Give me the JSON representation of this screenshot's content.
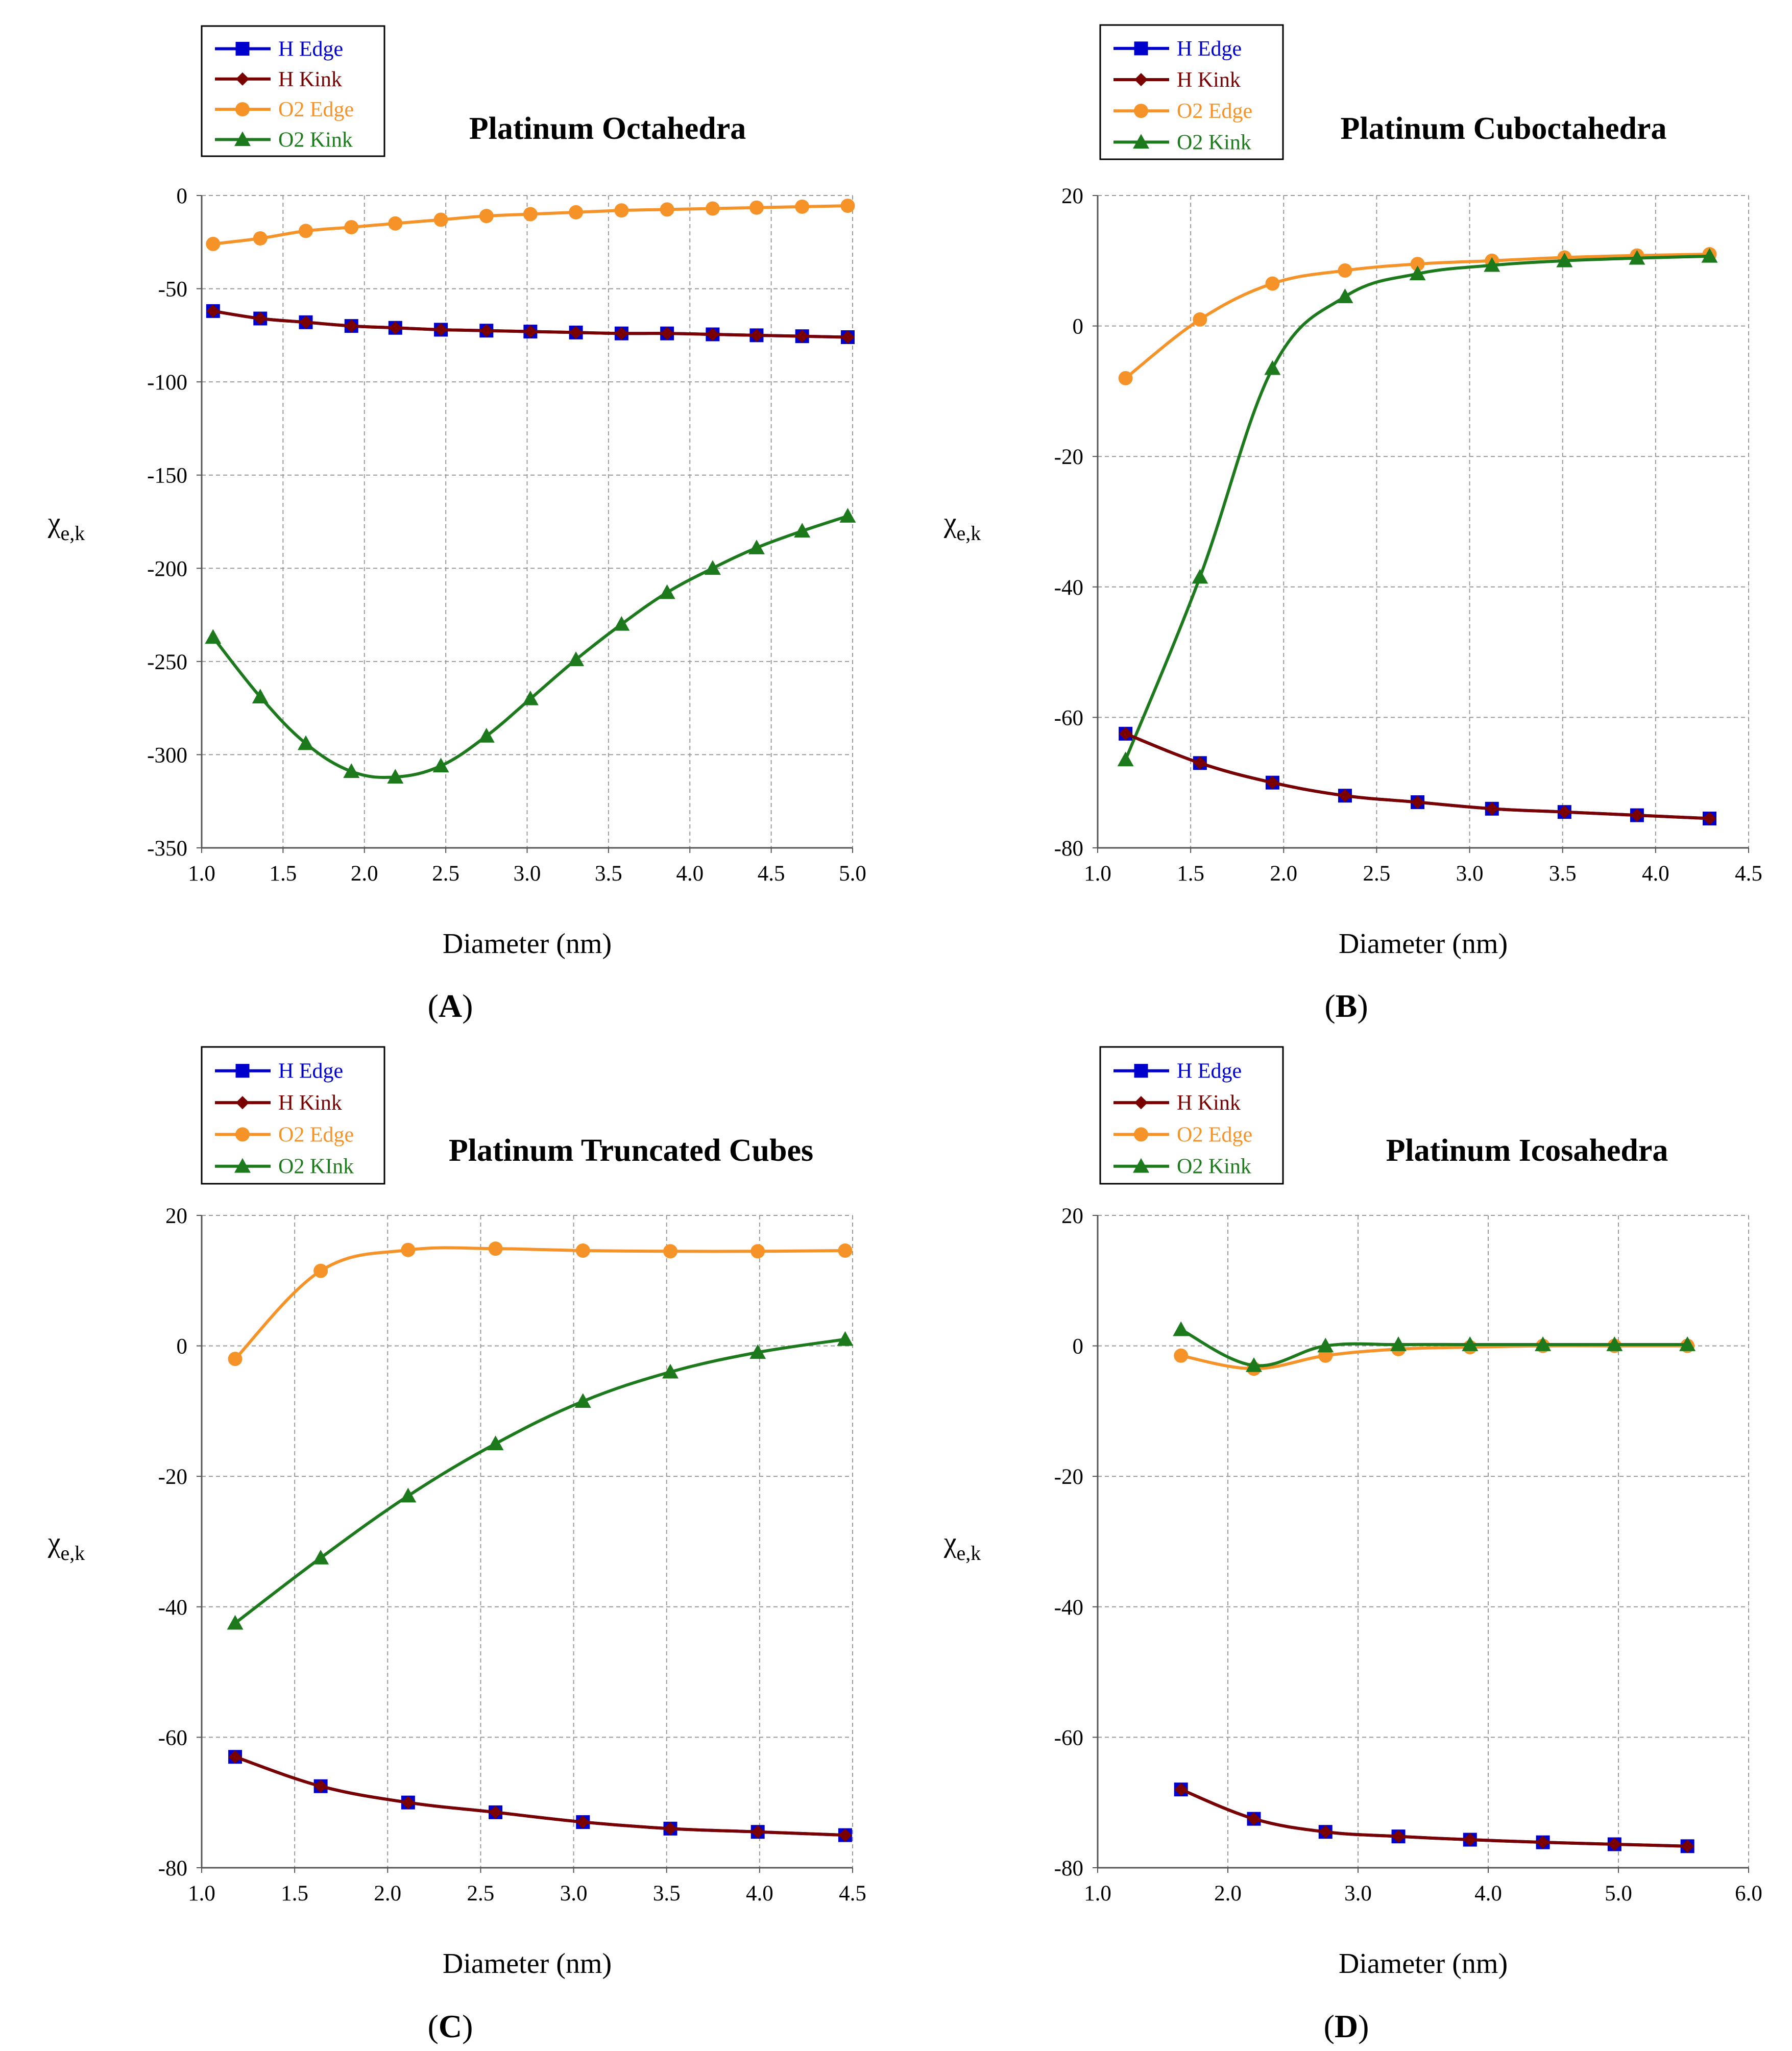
{
  "chart_data": [
    {
      "type": "line",
      "panel_label": "A",
      "title": "Platinum Octahedra",
      "xlabel": "Diameter (nm)",
      "ylabel_main": "χ",
      "ylabel_sub": "e,k",
      "xlim": [
        1.0,
        5.0
      ],
      "ylim": [
        -350,
        0
      ],
      "xticks": [
        1.0,
        1.5,
        2.0,
        2.5,
        3.0,
        3.5,
        4.0,
        4.5,
        5.0
      ],
      "xtick_labels": [
        "1.0",
        "1.5",
        "2.0",
        "2.5",
        "3.0",
        "3.5",
        "4.0",
        "4.5",
        "5.0"
      ],
      "yticks": [
        0,
        -50,
        -100,
        -150,
        -200,
        -250,
        -300,
        -350
      ],
      "ytick_labels": [
        "0",
        "-50",
        "-100",
        "-150",
        "-200",
        "-250",
        "-300",
        "-350"
      ],
      "grid": true,
      "legend": [
        "H Edge",
        "H Kink",
        "O2 Edge",
        "O2 Kink"
      ],
      "series": [
        {
          "name": "H Edge",
          "color": "#0000cc",
          "marker": "square",
          "x": [
            1.07,
            1.36,
            1.64,
            1.92,
            2.19,
            2.47,
            2.75,
            3.02,
            3.3,
            3.58,
            3.86,
            4.14,
            4.41,
            4.69,
            4.97
          ],
          "values": [
            -62,
            -66,
            -68,
            -70,
            -71,
            -72,
            -72.5,
            -73,
            -73.5,
            -74,
            -74,
            -74.5,
            -75,
            -75.5,
            -76
          ]
        },
        {
          "name": "H Kink",
          "color": "#7a0000",
          "marker": "diamond",
          "x": [
            1.07,
            1.36,
            1.64,
            1.92,
            2.19,
            2.47,
            2.75,
            3.02,
            3.3,
            3.58,
            3.86,
            4.14,
            4.41,
            4.69,
            4.97
          ],
          "values": [
            -62,
            -66,
            -68,
            -70,
            -71,
            -72,
            -72.5,
            -73,
            -73.5,
            -74,
            -74,
            -74.5,
            -75,
            -75.5,
            -76
          ]
        },
        {
          "name": "O2 Edge",
          "color": "#f59328",
          "marker": "circle",
          "x": [
            1.07,
            1.36,
            1.64,
            1.92,
            2.19,
            2.47,
            2.75,
            3.02,
            3.3,
            3.58,
            3.86,
            4.14,
            4.41,
            4.69,
            4.97
          ],
          "values": [
            -26,
            -23,
            -19,
            -17,
            -15,
            -13,
            -11,
            -10,
            -9,
            -8,
            -7.5,
            -7,
            -6.5,
            -6,
            -5.5
          ]
        },
        {
          "name": "O2 Kink",
          "color": "#1c7a1c",
          "marker": "triangle",
          "x": [
            1.07,
            1.36,
            1.64,
            1.92,
            2.19,
            2.47,
            2.75,
            3.02,
            3.3,
            3.58,
            3.86,
            4.14,
            4.41,
            4.69,
            4.97
          ],
          "values": [
            -237,
            -269,
            -294,
            -309,
            -312,
            -306,
            -290,
            -270,
            -249,
            -230,
            -213,
            -200,
            -189,
            -180,
            -172
          ]
        }
      ]
    },
    {
      "type": "line",
      "panel_label": "B",
      "title": "Platinum Cuboctahedra",
      "xlabel": "Diameter (nm)",
      "ylabel_main": "χ",
      "ylabel_sub": "e,k",
      "xlim": [
        1.0,
        4.5
      ],
      "ylim": [
        -80,
        20
      ],
      "xticks": [
        1.0,
        1.5,
        2.0,
        2.5,
        3.0,
        3.5,
        4.0,
        4.5
      ],
      "xtick_labels": [
        "1.0",
        "1.5",
        "2.0",
        "2.5",
        "3.0",
        "3.5",
        "4.0",
        "4.5"
      ],
      "yticks": [
        20,
        0,
        -20,
        -40,
        -60,
        -80
      ],
      "ytick_labels": [
        "20",
        "0",
        "-20",
        "-40",
        "-60",
        "-80"
      ],
      "grid": true,
      "legend": [
        "H Edge",
        "H Kink",
        "O2 Edge",
        "O2 Kink"
      ],
      "series": [
        {
          "name": "H Edge",
          "color": "#0000cc",
          "marker": "square",
          "x": [
            1.15,
            1.55,
            1.94,
            2.33,
            2.72,
            3.12,
            3.51,
            3.9,
            4.29
          ],
          "values": [
            -62.5,
            -67,
            -70,
            -72,
            -73,
            -74,
            -74.5,
            -75,
            -75.5
          ]
        },
        {
          "name": "H Kink",
          "color": "#7a0000",
          "marker": "diamond",
          "x": [
            1.15,
            1.55,
            1.94,
            2.33,
            2.72,
            3.12,
            3.51,
            3.9,
            4.29
          ],
          "values": [
            -62.5,
            -67,
            -70,
            -72,
            -73,
            -74,
            -74.5,
            -75,
            -75.5
          ]
        },
        {
          "name": "O2 Edge",
          "color": "#f59328",
          "marker": "circle",
          "x": [
            1.15,
            1.55,
            1.94,
            2.33,
            2.72,
            3.12,
            3.51,
            3.9,
            4.29
          ],
          "values": [
            -8,
            1,
            6.5,
            8.5,
            9.5,
            10,
            10.5,
            10.8,
            11
          ]
        },
        {
          "name": "O2 Kink",
          "color": "#1c7a1c",
          "marker": "triangle",
          "x": [
            1.15,
            1.55,
            1.94,
            2.33,
            2.72,
            3.12,
            3.51,
            3.9,
            4.29
          ],
          "values": [
            -66.5,
            -38.5,
            -6.5,
            4.5,
            8,
            9.3,
            10,
            10.4,
            10.7
          ]
        }
      ]
    },
    {
      "type": "line",
      "panel_label": "C",
      "title": "Platinum Truncated Cubes",
      "xlabel": "Diameter (nm)",
      "ylabel_main": "χ",
      "ylabel_sub": "e,k",
      "xlim": [
        1.0,
        4.5
      ],
      "ylim": [
        -80,
        20
      ],
      "xticks": [
        1.0,
        1.5,
        2.0,
        2.5,
        3.0,
        3.5,
        4.0,
        4.5
      ],
      "xtick_labels": [
        "1.0",
        "1.5",
        "2.0",
        "2.5",
        "3.0",
        "3.5",
        "4.0",
        "4.5"
      ],
      "yticks": [
        20,
        0,
        -20,
        -40,
        -60,
        -80
      ],
      "ytick_labels": [
        "20",
        "0",
        "-20",
        "-40",
        "-60",
        "-80"
      ],
      "grid": true,
      "legend": [
        "H Edge",
        "H Kink",
        "O2 Edge",
        "O2 KInk"
      ],
      "series": [
        {
          "name": "H Edge",
          "color": "#0000cc",
          "marker": "square",
          "x": [
            1.18,
            1.64,
            2.11,
            2.58,
            3.05,
            3.52,
            3.99,
            4.46
          ],
          "values": [
            -63,
            -67.5,
            -70,
            -71.5,
            -73,
            -74,
            -74.5,
            -75
          ]
        },
        {
          "name": "H Kink",
          "color": "#7a0000",
          "marker": "diamond",
          "x": [
            1.18,
            1.64,
            2.11,
            2.58,
            3.05,
            3.52,
            3.99,
            4.46
          ],
          "values": [
            -63,
            -67.5,
            -70,
            -71.5,
            -73,
            -74,
            -74.5,
            -75
          ]
        },
        {
          "name": "O2 Edge",
          "color": "#f59328",
          "marker": "circle",
          "x": [
            1.18,
            1.64,
            2.11,
            2.58,
            3.05,
            3.52,
            3.99,
            4.46
          ],
          "values": [
            -2,
            11.5,
            14.7,
            14.9,
            14.6,
            14.5,
            14.5,
            14.6
          ]
        },
        {
          "name": "O2 KInk",
          "color": "#1c7a1c",
          "marker": "triangle",
          "x": [
            1.18,
            1.64,
            2.11,
            2.58,
            3.05,
            3.52,
            3.99,
            4.46
          ],
          "values": [
            -42.5,
            -32.5,
            -23,
            -15,
            -8.5,
            -4,
            -1,
            1
          ]
        }
      ]
    },
    {
      "type": "line",
      "panel_label": "D",
      "title": "Platinum Icosahedra",
      "xlabel": "Diameter (nm)",
      "ylabel_main": "χ",
      "ylabel_sub": "e,k",
      "xlim": [
        1.0,
        6.0
      ],
      "ylim": [
        -80,
        20
      ],
      "xticks": [
        1.0,
        2.0,
        3.0,
        4.0,
        5.0,
        6.0
      ],
      "xtick_labels": [
        "1.0",
        "2.0",
        "3.0",
        "4.0",
        "5.0",
        "6.0"
      ],
      "yticks": [
        20,
        0,
        -20,
        -40,
        -60,
        -80
      ],
      "ytick_labels": [
        "20",
        "0",
        "-20",
        "-40",
        "-60",
        "-80"
      ],
      "grid": true,
      "legend": [
        "H Edge",
        "H Kink",
        "O2 Edge",
        "O2 Kink"
      ],
      "series": [
        {
          "name": "H Edge",
          "color": "#0000cc",
          "marker": "square",
          "x": [
            1.64,
            2.2,
            2.75,
            3.31,
            3.86,
            4.42,
            4.97,
            5.53
          ],
          "values": [
            -68,
            -72.5,
            -74.5,
            -75.2,
            -75.7,
            -76.1,
            -76.4,
            -76.7
          ]
        },
        {
          "name": "H Kink",
          "color": "#7a0000",
          "marker": "diamond",
          "x": [
            1.64,
            2.2,
            2.75,
            3.31,
            3.86,
            4.42,
            4.97,
            5.53
          ],
          "values": [
            -68,
            -72.5,
            -74.5,
            -75.2,
            -75.7,
            -76.1,
            -76.4,
            -76.7
          ]
        },
        {
          "name": "O2 Edge",
          "color": "#f59328",
          "marker": "circle",
          "x": [
            1.64,
            2.2,
            2.75,
            3.31,
            3.86,
            4.42,
            4.97,
            5.53
          ],
          "values": [
            -1.5,
            -3.5,
            -1.5,
            -0.5,
            -0.2,
            0,
            0,
            0
          ]
        },
        {
          "name": "O2 Kink",
          "color": "#1c7a1c",
          "marker": "triangle",
          "x": [
            1.64,
            2.2,
            2.75,
            3.31,
            3.86,
            4.42,
            4.97,
            5.53
          ],
          "values": [
            2.5,
            -3,
            0,
            0.2,
            0.2,
            0.2,
            0.2,
            0.2
          ]
        }
      ]
    }
  ]
}
